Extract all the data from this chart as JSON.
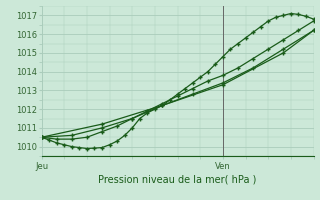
{
  "title": "Pression niveau de la mer( hPa )",
  "xlabel_jeu": "Jeu",
  "xlabel_ven": "Ven",
  "bg_color": "#cce8d8",
  "grid_color": "#aaccbb",
  "line_color": "#1a5c1a",
  "ylim": [
    1009.5,
    1017.5
  ],
  "yticks": [
    1010,
    1011,
    1012,
    1013,
    1014,
    1015,
    1016,
    1017
  ],
  "xlim": [
    0,
    36
  ],
  "jeu_x": 0.0,
  "ven_x": 24.0,
  "xticks_major": [
    0,
    6,
    12,
    18,
    24,
    30,
    36
  ],
  "xticks_minor": [
    0,
    3,
    6,
    9,
    12,
    15,
    18,
    21,
    24,
    27,
    30,
    33,
    36
  ],
  "line1_x": [
    0,
    1,
    2,
    3,
    4,
    5,
    6,
    7,
    8,
    9,
    10,
    11,
    12,
    13,
    14,
    15,
    16,
    17,
    18,
    19,
    20,
    21,
    22,
    23,
    24,
    25,
    26,
    27,
    28,
    29,
    30,
    31,
    32,
    33,
    34,
    35,
    36
  ],
  "line1_y": [
    1010.5,
    1010.35,
    1010.2,
    1010.1,
    1010.0,
    1009.95,
    1009.9,
    1009.92,
    1009.95,
    1010.1,
    1010.3,
    1010.6,
    1011.0,
    1011.5,
    1011.8,
    1012.0,
    1012.2,
    1012.5,
    1012.8,
    1013.1,
    1013.4,
    1013.7,
    1014.0,
    1014.4,
    1014.8,
    1015.2,
    1015.5,
    1015.8,
    1016.1,
    1016.4,
    1016.7,
    1016.9,
    1017.0,
    1017.1,
    1017.05,
    1016.95,
    1016.8
  ],
  "line2_x": [
    0,
    2,
    4,
    6,
    8,
    10,
    12,
    14,
    16,
    18,
    20,
    22,
    24,
    26,
    28,
    30,
    32,
    34,
    36
  ],
  "line2_y": [
    1010.5,
    1010.4,
    1010.4,
    1010.5,
    1010.8,
    1011.1,
    1011.5,
    1011.9,
    1012.3,
    1012.7,
    1013.1,
    1013.5,
    1013.8,
    1014.2,
    1014.7,
    1015.2,
    1015.7,
    1016.2,
    1016.7
  ],
  "line3_x": [
    0,
    4,
    8,
    12,
    16,
    20,
    24,
    28,
    32,
    36
  ],
  "line3_y": [
    1010.5,
    1010.6,
    1011.0,
    1011.5,
    1012.2,
    1012.8,
    1013.4,
    1014.2,
    1015.2,
    1016.2
  ],
  "line4_x": [
    0,
    8,
    16,
    24,
    32,
    36
  ],
  "line4_y": [
    1010.5,
    1011.2,
    1012.2,
    1013.3,
    1015.0,
    1016.2
  ]
}
